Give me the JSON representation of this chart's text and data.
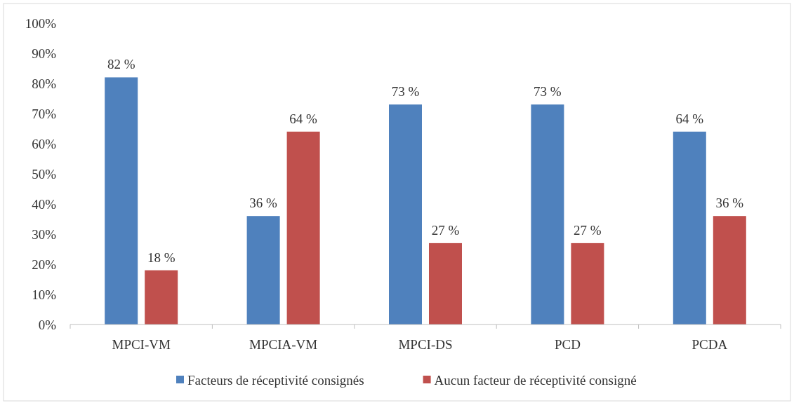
{
  "chart_data": {
    "type": "bar",
    "categories": [
      "MPCI-VM",
      "MPCIA-VM",
      "MPCI-DS",
      "PCD",
      "PCDA"
    ],
    "series": [
      {
        "name": "Facteurs de réceptivité consignés",
        "color": "#4f81bd",
        "values": [
          82,
          36,
          73,
          73,
          64
        ],
        "value_labels": [
          "82 %",
          "36 %",
          "73 %",
          "73 %",
          "64 %"
        ]
      },
      {
        "name": "Aucun facteur de réceptivité consigné",
        "color": "#c0504d",
        "values": [
          18,
          64,
          27,
          27,
          36
        ],
        "value_labels": [
          "18 %",
          "64 %",
          "27 %",
          "27 %",
          "36 %"
        ]
      }
    ],
    "ylim": [
      0,
      100
    ],
    "yticks": [
      {
        "value": 0,
        "label": "0%"
      },
      {
        "value": 10,
        "label": "10%"
      },
      {
        "value": 20,
        "label": "20%"
      },
      {
        "value": 30,
        "label": "30%"
      },
      {
        "value": 40,
        "label": "40%"
      },
      {
        "value": 50,
        "label": "50%"
      },
      {
        "value": 60,
        "label": "60%"
      },
      {
        "value": 70,
        "label": "70%"
      },
      {
        "value": 80,
        "label": "80%"
      },
      {
        "value": 90,
        "label": "90%"
      },
      {
        "value": 100,
        "label": "100%"
      }
    ],
    "grid": false,
    "legend": "bottom"
  }
}
